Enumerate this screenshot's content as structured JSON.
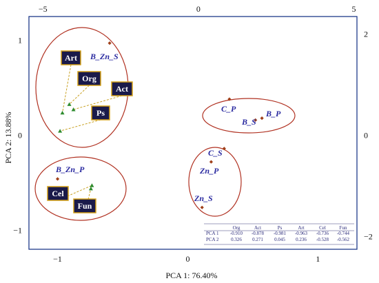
{
  "chart_data": {
    "type": "scatter",
    "title": "",
    "xlabel": "PCA 1: 76.40%",
    "ylabel": "PCA 2: 13.88%",
    "bottom_axis": {
      "ticks": [
        -1,
        0,
        1
      ],
      "labels": [
        "−1",
        "0",
        "1"
      ],
      "range": [
        -1.22,
        1.3
      ]
    },
    "left_axis": {
      "ticks": [
        1,
        0,
        -1
      ],
      "labels": [
        "1",
        "0",
        "−1"
      ],
      "range": [
        -1.2,
        1.25
      ]
    },
    "top_axis": {
      "ticks": [
        -5,
        0,
        5
      ],
      "labels": [
        "−5",
        "0",
        "5"
      ],
      "range": [
        -5.45,
        5.1
      ]
    },
    "right_axis": {
      "ticks": [
        2,
        0,
        -2
      ],
      "labels": [
        "2",
        "0",
        "−2"
      ],
      "range": [
        -2.25,
        2.35
      ]
    },
    "scores": [
      {
        "label": "B_Zn_S",
        "x": -0.6,
        "y": 0.97
      },
      {
        "label": "C_P",
        "x": 0.32,
        "y": 0.38
      },
      {
        "label": "B_P",
        "x": 0.57,
        "y": 0.18
      },
      {
        "label": "B_S",
        "x": 0.52,
        "y": 0.16
      },
      {
        "label": "C_S",
        "x": 0.28,
        "y": -0.14
      },
      {
        "label": "Zn_P",
        "x": 0.18,
        "y": -0.28
      },
      {
        "label": "B_Zn_P",
        "x": -1.0,
        "y": -0.46
      },
      {
        "label": "Zn_S",
        "x": 0.11,
        "y": -0.76
      }
    ],
    "loadings": [
      {
        "label": "Org",
        "x": -0.91,
        "y": 0.326
      },
      {
        "label": "Act",
        "x": -0.878,
        "y": 0.271
      },
      {
        "label": "Ps",
        "x": -0.981,
        "y": 0.045
      },
      {
        "label": "Art",
        "x": -0.963,
        "y": 0.236
      },
      {
        "label": "Cel",
        "x": -0.736,
        "y": -0.528
      },
      {
        "label": "Fun",
        "x": -0.744,
        "y": -0.562
      }
    ],
    "groups": [
      "B_Zn_S, Art, Org, Act, Ps",
      "C_P, B_S, B_P",
      "C_S, Zn_P, Zn_S",
      "B_Zn_P, Cel, Fun"
    ],
    "table": {
      "headers": [
        "",
        "Org",
        "Act",
        "Ps",
        "Art",
        "Cel",
        "Fun"
      ],
      "rows": [
        [
          "PCA 1",
          "-0.910",
          "-0.878",
          "-0.981",
          "-0.963",
          "-0.736",
          "-0.744"
        ],
        [
          "PCA 2",
          "0.326",
          "0.271",
          "0.045",
          "0.236",
          "-0.528",
          "-0.562"
        ]
      ]
    },
    "colors": {
      "frame": "#1e3a8a",
      "ellipse": "#b03020",
      "score_marker": "#a0401a",
      "loading_marker": "#2e8b2e",
      "loading_line": "#c8a020",
      "label_text": "#2a2aa0",
      "box_fill": "#1a1a4a",
      "box_border": "#d4a017"
    },
    "grid": false
  }
}
